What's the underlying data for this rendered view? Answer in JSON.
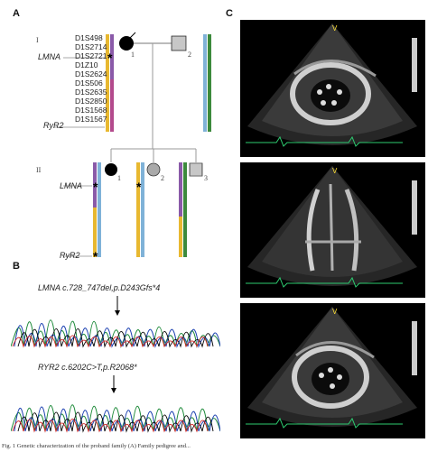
{
  "panels": {
    "a": "A",
    "b": "B",
    "c": "C"
  },
  "generations": {
    "g1": "I",
    "g2": "II"
  },
  "gene_labels": {
    "lmna_1": "LMNA",
    "ryr2_1": "RyR2",
    "lmna_2": "LMNA",
    "ryr2_2": "RyR2"
  },
  "markers": [
    "D1S498",
    "D1S2714",
    "D1S2721",
    "D1Z10",
    "D1S2624",
    "D1S506",
    "D1S2635",
    "D1S2850",
    "D1S1568",
    "D1S1567"
  ],
  "individuals": {
    "i1": "1",
    "i2": "2",
    "ii1": "1",
    "ii2": "2",
    "ii3": "3"
  },
  "mutation_mark": "*",
  "sequences": {
    "lmna_title": "LMNA c.728_747del,p.D243Gfs*4",
    "ryr2_title": "RYR2 c.6202C>T,p.R2068*"
  },
  "caption": "Fig. 1  Genetic characterization of the proband family (A) Family pedigree and..."
}
